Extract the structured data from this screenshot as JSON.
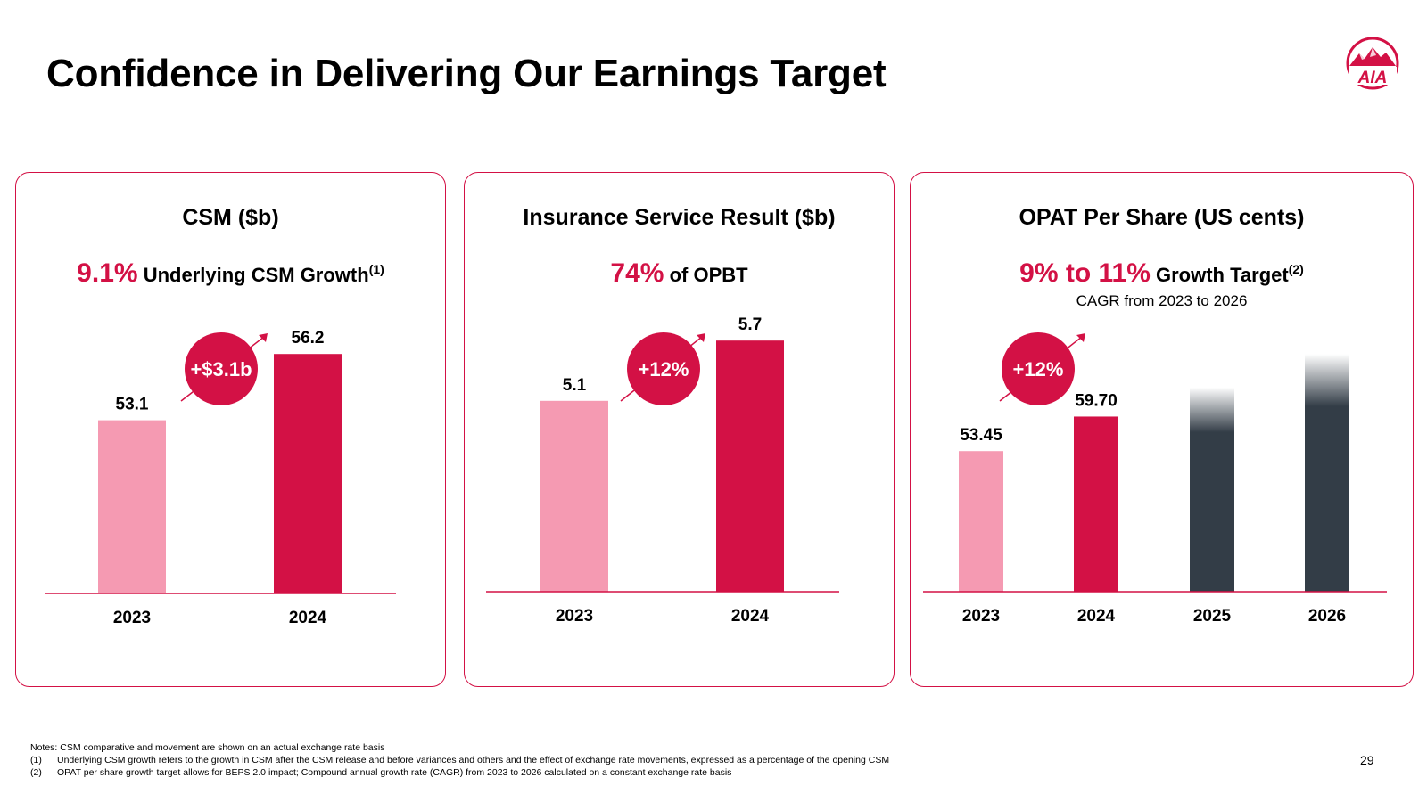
{
  "title": "Confidence in Delivering Our Earnings Target",
  "colors": {
    "accent": "#d31145",
    "light": "#f59ab2",
    "dark": "#333d47"
  },
  "panels": [
    {
      "title": "CSM ($b)",
      "highlight": "9.1%",
      "headline_text": "Underlying CSM Growth",
      "footnote_ref": "(1)",
      "subtitle": "",
      "badge": "+$3.1b"
    },
    {
      "title": "Insurance Service Result ($b)",
      "highlight": "74%",
      "headline_text": "of OPBT",
      "footnote_ref": "",
      "subtitle": "",
      "badge": "+12%"
    },
    {
      "title": "OPAT Per Share (US cents)",
      "highlight": "9% to 11%",
      "headline_text": "Growth Target",
      "footnote_ref": "(2)",
      "subtitle": "CAGR from 2023 to 2026",
      "badge": "+12%"
    }
  ],
  "chart_data": [
    {
      "type": "bar",
      "title": "CSM ($b)",
      "categories": [
        "2023",
        "2024"
      ],
      "values": [
        53.1,
        56.2
      ],
      "labels": [
        "53.1",
        "56.2"
      ],
      "styles": [
        "light",
        "accent"
      ],
      "ylim": [
        45,
        58
      ]
    },
    {
      "type": "bar",
      "title": "Insurance Service Result ($b)",
      "categories": [
        "2023",
        "2024"
      ],
      "values": [
        5.1,
        5.7
      ],
      "labels": [
        "5.1",
        "5.7"
      ],
      "styles": [
        "light",
        "accent"
      ],
      "ylim": [
        3.2,
        5.95
      ]
    },
    {
      "type": "bar",
      "title": "OPAT Per Share (US cents)",
      "categories": [
        "2023",
        "2024",
        "2025",
        "2026"
      ],
      "values": [
        53.45,
        59.7,
        65,
        71
      ],
      "labels": [
        "53.45",
        "59.70",
        "",
        ""
      ],
      "styles": [
        "light",
        "accent",
        "projected",
        "projected"
      ],
      "ylim": [
        28,
        78
      ]
    }
  ],
  "notes": {
    "intro": "Notes: CSM comparative and movement are shown on an actual exchange rate basis",
    "items": [
      {
        "num": "(1)",
        "text": "Underlying CSM growth refers to the growth in CSM after the CSM release and before variances and others and the effect of exchange rate movements, expressed as a percentage of the opening CSM"
      },
      {
        "num": "(2)",
        "text": "OPAT per share growth target allows for BEPS 2.0 impact; Compound annual growth rate (CAGR) from 2023 to 2026 calculated on a constant exchange rate basis"
      }
    ]
  },
  "page_number": "29",
  "logo_text": "AIA"
}
